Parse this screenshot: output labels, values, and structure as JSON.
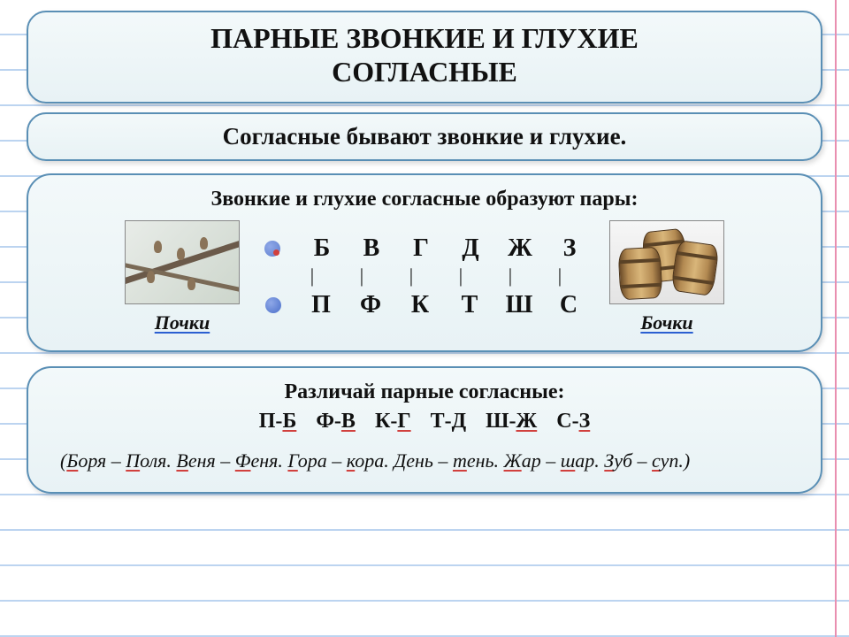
{
  "colors": {
    "card_border": "#5a8fb5",
    "card_bg_top": "#f3f9fa",
    "card_bg_bottom": "#e8f2f5",
    "notebook_line": "#bcd4f0",
    "margin_line": "#e98fb0",
    "red_underline": "#d1403d",
    "blue_underline": "#2b5fd1",
    "text": "#111111"
  },
  "fonts": {
    "title_size": 32,
    "subtitle_size": 27,
    "body_size": 24,
    "letters_size": 28,
    "examples_size": 22
  },
  "title": {
    "line1": "ПАРНЫЕ ЗВОНКИЕ И ГЛУХИЕ",
    "line2": "СОГЛАСНЫЕ"
  },
  "subtitle": "Согласные бывают звонкие и глухие.",
  "pairs_block": {
    "intro": "Звонкие и глухие согласные образуют пары:",
    "voiced": [
      "Б",
      "В",
      "Г",
      "Д",
      "Ж",
      "З"
    ],
    "voiceless": [
      "П",
      "Ф",
      "К",
      "Т",
      "Ш",
      "С"
    ],
    "left_caption": "Почки",
    "right_caption": "Бочки"
  },
  "distinguish": {
    "heading": "Различай парные согласные:",
    "pairs": [
      {
        "a": "П",
        "b": "Б"
      },
      {
        "a": "Ф",
        "b": "В"
      },
      {
        "a": "К",
        "b": "Г"
      },
      {
        "a": "Т",
        "b": "Д"
      },
      {
        "a": "Ш",
        "b": "Ж"
      },
      {
        "a": "С",
        "b": "З"
      }
    ],
    "examples_prefix": "(",
    "examples": [
      {
        "a": "Боря",
        "b": "Поля"
      },
      {
        "a": "Веня",
        "b": "Феня"
      },
      {
        "a": "Гора",
        "b": "кора"
      },
      {
        "a": "День",
        "b": "тень"
      },
      {
        "a": "Жар",
        "b": "шар"
      },
      {
        "a": "Зуб",
        "b": "суп"
      }
    ],
    "examples_suffix": ".)"
  }
}
